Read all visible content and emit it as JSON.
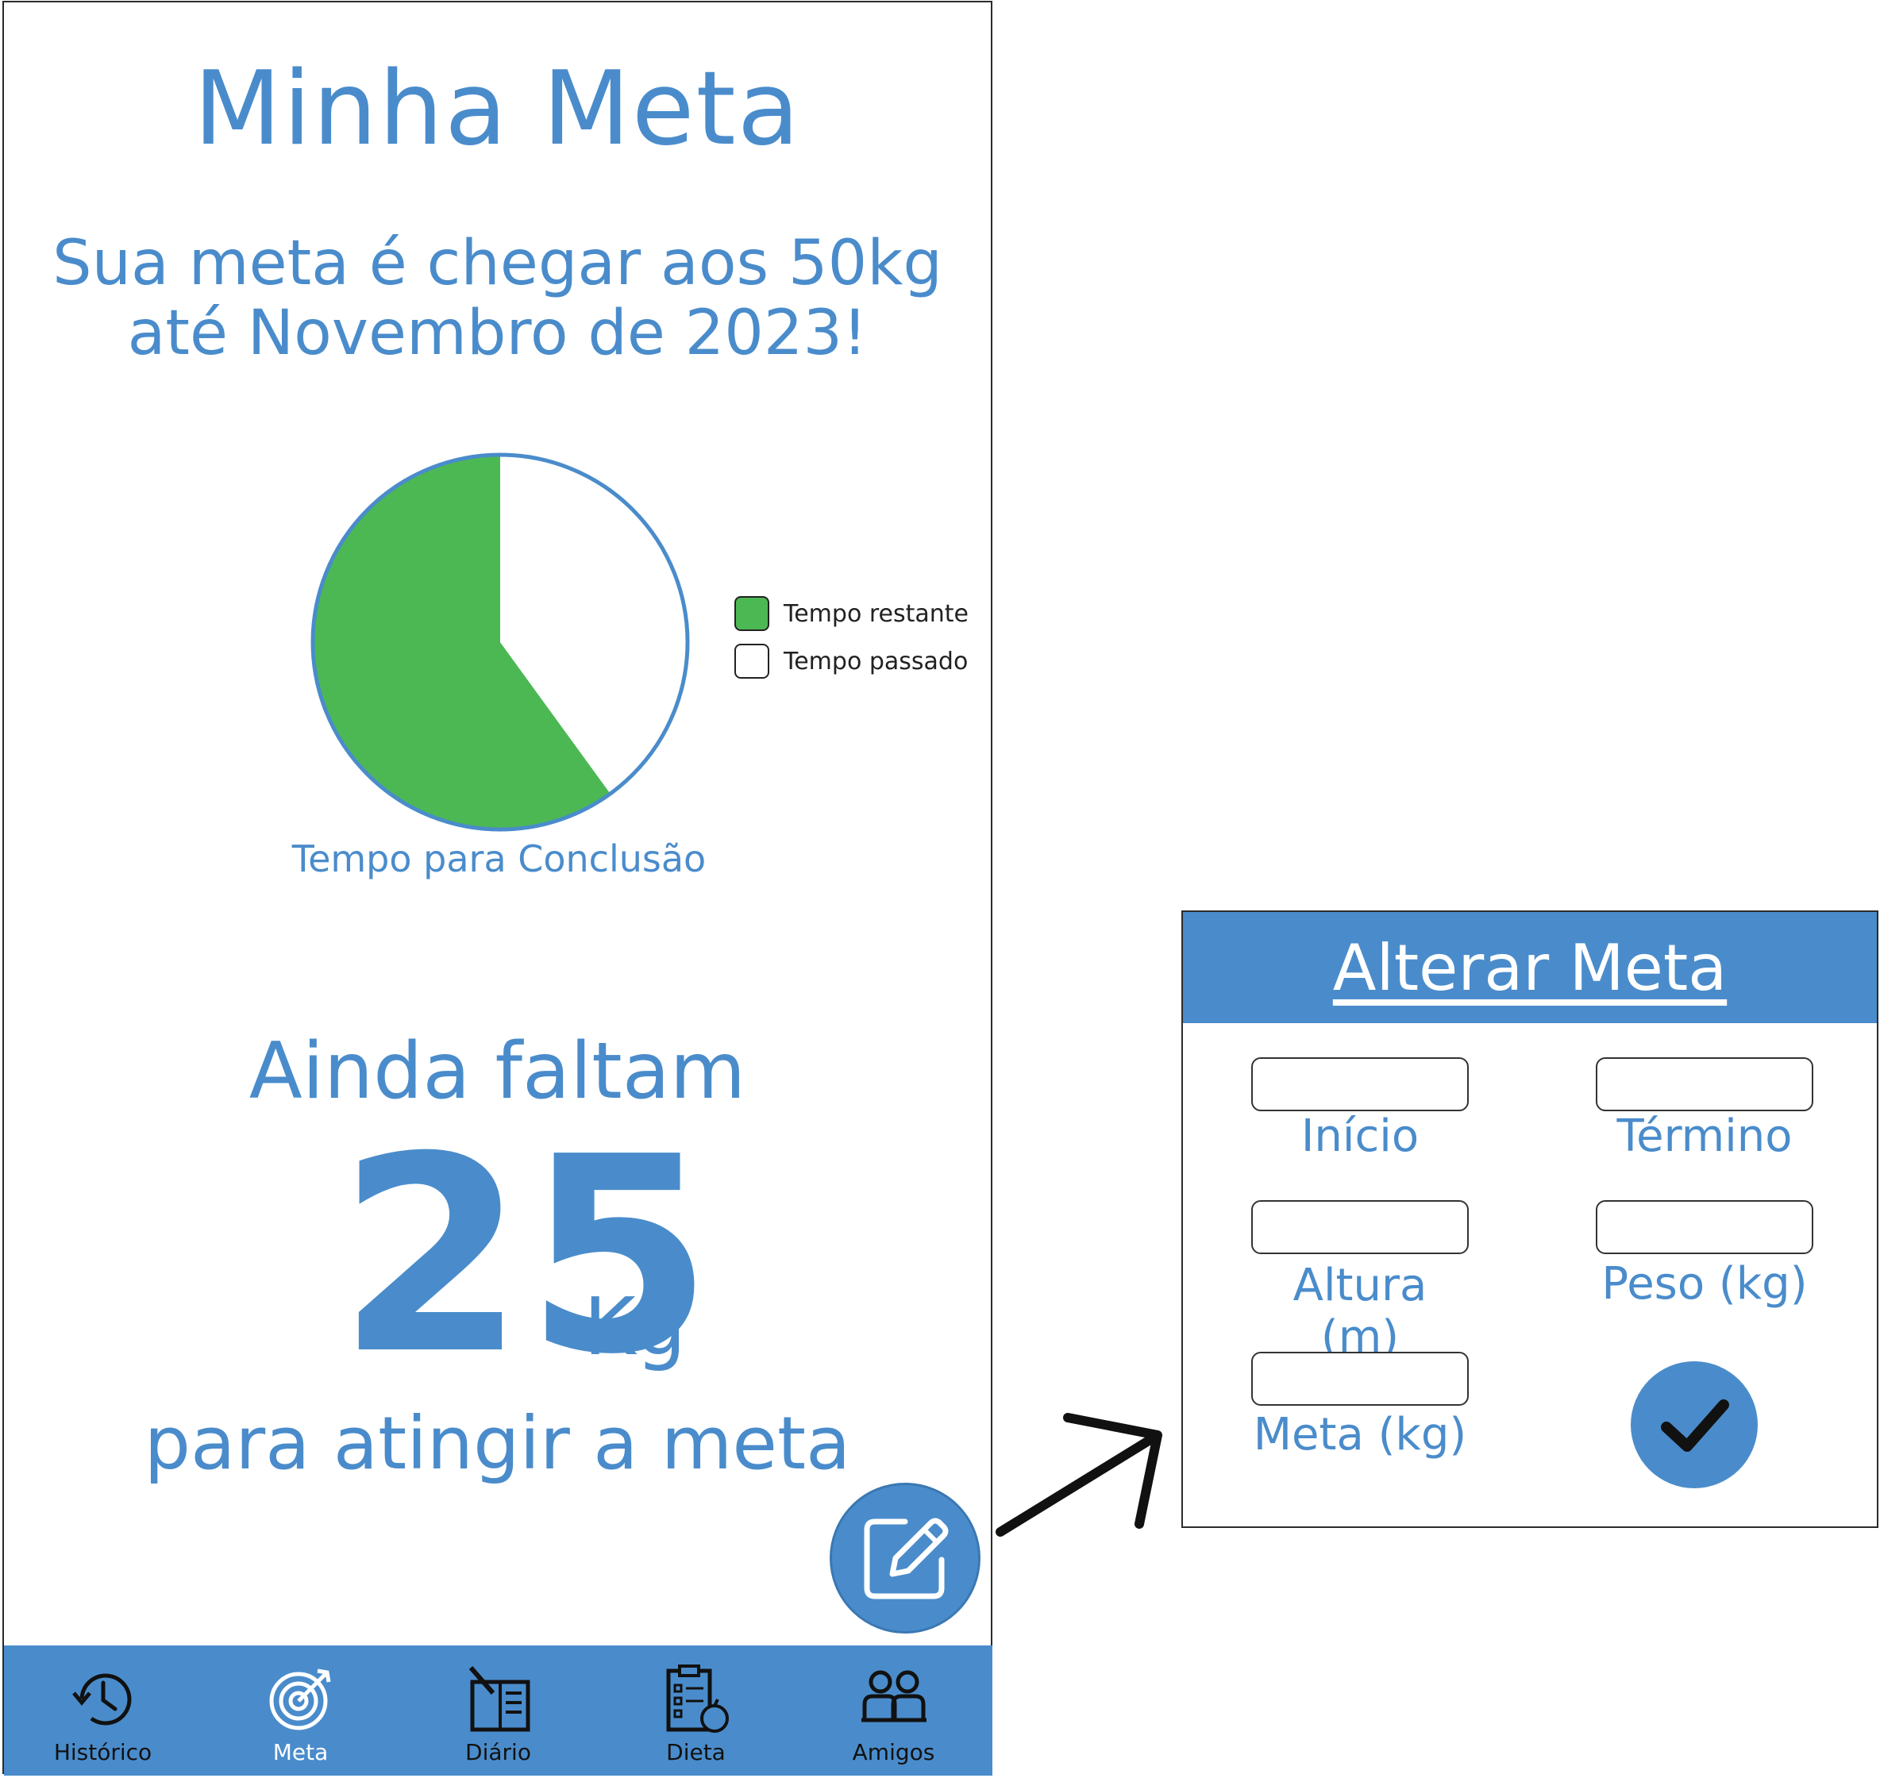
{
  "screen": {
    "title": "Minha Meta",
    "subtitle_line1": "Sua meta é chegar aos 50kg",
    "subtitle_line2": "até Novembro de 2023!"
  },
  "chart_data": {
    "type": "pie",
    "title": "Tempo para Conclusão",
    "slices": [
      {
        "name": "Tempo restante",
        "value": 60,
        "color": "#4cb853"
      },
      {
        "name": "Tempo passado",
        "value": 40,
        "color": "#ffffff"
      }
    ],
    "legend_placement": "right",
    "border_color": "#4a8ccb"
  },
  "remaining": {
    "label": "Ainda faltam",
    "value": "25",
    "unit": "Kg",
    "sub": "para atingir a meta"
  },
  "fab": {
    "icon": "edit-icon"
  },
  "nav": {
    "items": [
      {
        "label": "Histórico",
        "icon": "history-icon"
      },
      {
        "label": "Meta",
        "icon": "target-icon"
      },
      {
        "label": "Diário",
        "icon": "diary-icon"
      },
      {
        "label": "Dieta",
        "icon": "diet-icon"
      },
      {
        "label": "Amigos",
        "icon": "friends-icon"
      }
    ]
  },
  "modal": {
    "title": "Alterar Meta",
    "fields": {
      "inicio": {
        "label": "Início",
        "value": ""
      },
      "termino": {
        "label": "Término",
        "value": ""
      },
      "altura": {
        "label": "Altura (m)",
        "value": ""
      },
      "peso": {
        "label": "Peso (kg)",
        "value": ""
      },
      "meta": {
        "label": "Meta (kg)",
        "value": ""
      }
    },
    "confirm_icon": "check-icon"
  },
  "colors": {
    "accent": "#4a8ccb",
    "green": "#4cb853",
    "text_dark": "#111111"
  }
}
